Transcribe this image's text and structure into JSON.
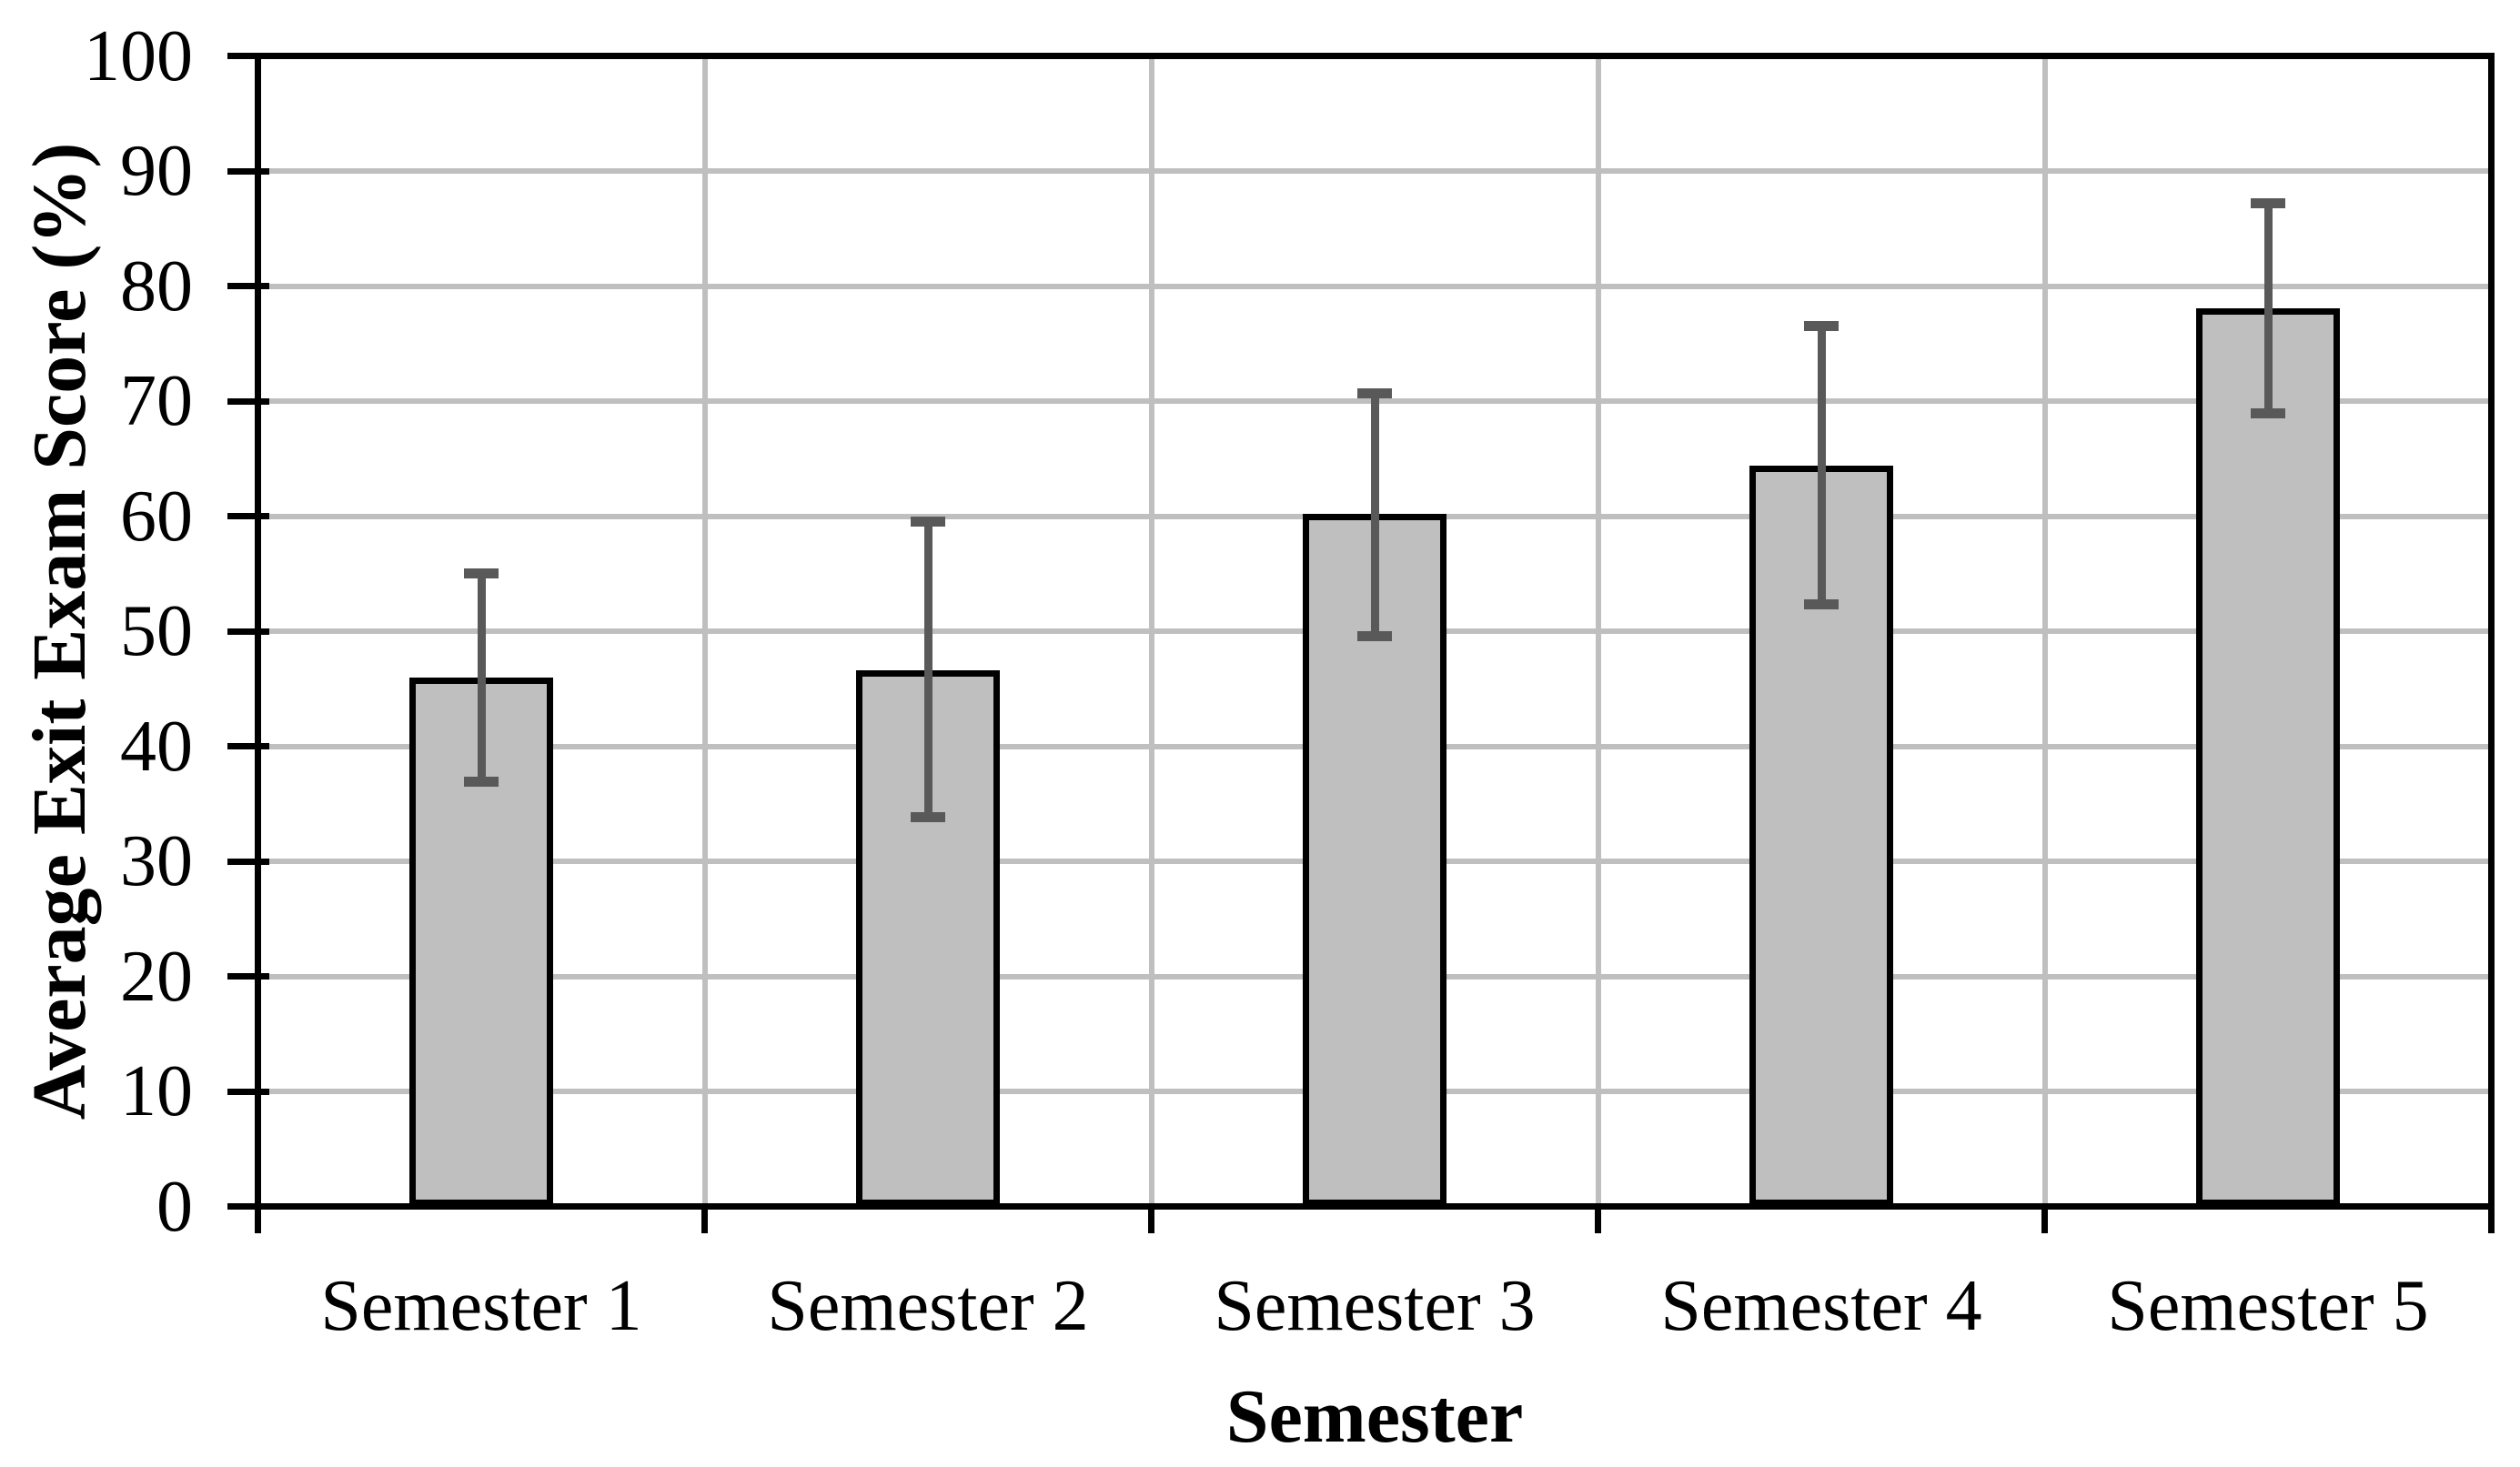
{
  "chart_data": {
    "type": "bar",
    "title": "",
    "xlabel": "Semester",
    "ylabel": "Average Exit Exam Score (%)",
    "categories": [
      "Semester 1",
      "Semester 2",
      "Semester 3",
      "Semester 4",
      "Semester 5"
    ],
    "values": [
      46.0,
      46.6,
      60.2,
      64.4,
      78.1
    ],
    "error_upper": [
      55.0,
      59.5,
      70.7,
      76.5,
      87.2
    ],
    "error_lower": [
      36.9,
      33.8,
      49.6,
      52.3,
      68.9
    ],
    "ylim": [
      0,
      100
    ],
    "ytick_step": 10,
    "ytick_labels": [
      "0",
      "10",
      "20",
      "30",
      "40",
      "50",
      "60",
      "70",
      "80",
      "90",
      "100"
    ],
    "grid": "horizontal gridlines at each ytick, vertical gridlines at category boundaries",
    "legend": "none",
    "colors": {
      "bar_fill": "#BFBFBF",
      "bar_border": "#000000",
      "error_bar": "#595959",
      "gridline": "#BFBFBF",
      "axis": "#000000",
      "text": "#000000",
      "background": "#FFFFFF"
    }
  }
}
